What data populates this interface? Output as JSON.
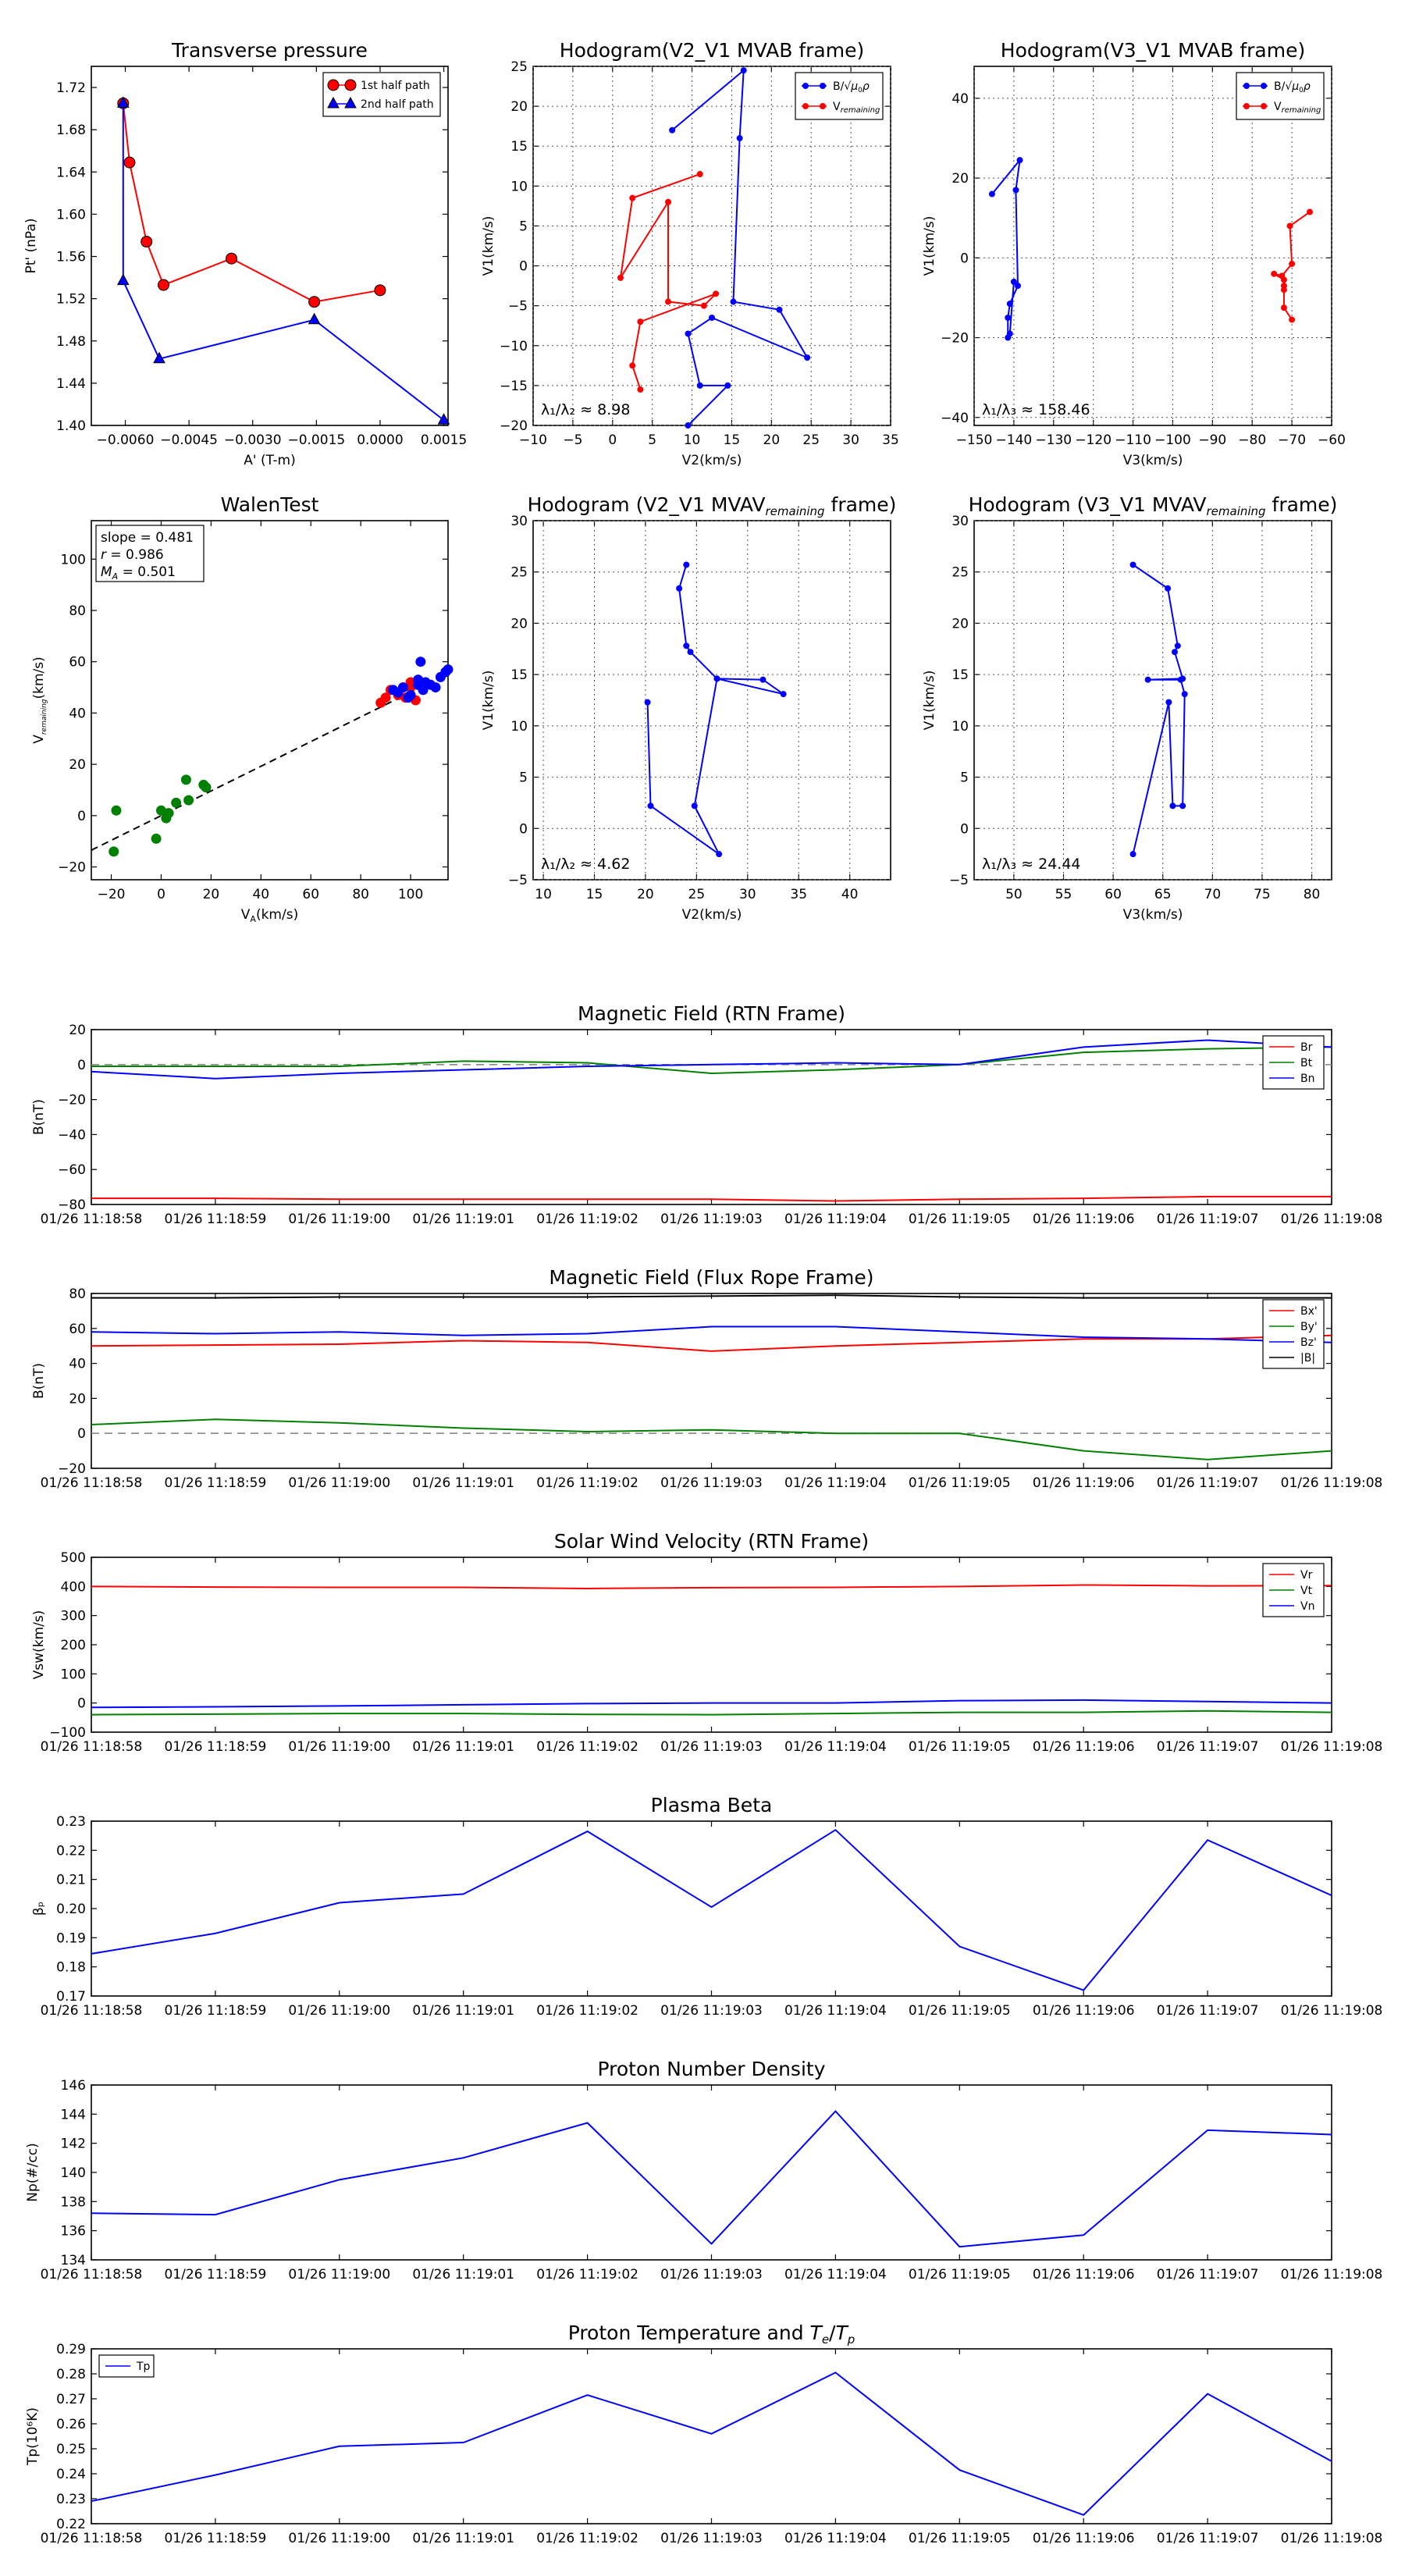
{
  "figure": {
    "time_ticks": [
      "01/26 11:18:58",
      "01/26 11:18:59",
      "01/26 11:19:00",
      "01/26 11:19:01",
      "01/26 11:19:02",
      "01/26 11:19:03",
      "01/26 11:19:04",
      "01/26 11:19:05",
      "01/26 11:19:06",
      "01/26 11:19:07",
      "01/26 11:19:08"
    ]
  },
  "colors": {
    "red": "#ff0000",
    "green": "#008000",
    "blue": "#0000ff",
    "black": "#000000",
    "gray": "#888888",
    "red_marker": "#dd1111",
    "blue_marker": "#1a1aff"
  },
  "chart_data": [
    {
      "id": "pt",
      "type": "line",
      "title": "Transverse pressure",
      "xlabel": "A' (T-m)",
      "ylabel": "Pt' (nPa)",
      "xlim": [
        -0.0068,
        0.0016
      ],
      "ylim": [
        1.4,
        1.74
      ],
      "xticks": [
        -0.006,
        -0.0045,
        -0.003,
        -0.0015,
        0.0,
        0.0015
      ],
      "xtick_labels": [
        "−0.0060",
        "−0.0045",
        "−0.0030",
        "−0.0015",
        "0.0000",
        "0.0015"
      ],
      "yticks": [
        1.4,
        1.44,
        1.48,
        1.52,
        1.56,
        1.6,
        1.64,
        1.68,
        1.72
      ],
      "ytick_labels": [
        "1.40",
        "1.44",
        "1.48",
        "1.52",
        "1.56",
        "1.60",
        "1.64",
        "1.68",
        "1.72"
      ],
      "legend_loc": "top-right",
      "series": [
        {
          "name": "1st half path",
          "color": "red",
          "marker": "circle",
          "x": [
            -0.00605,
            -0.0059,
            -0.0055,
            -0.0051,
            -0.0035,
            -0.00155,
            0.0
          ],
          "y": [
            1.705,
            1.649,
            1.574,
            1.533,
            1.558,
            1.517,
            1.528
          ]
        },
        {
          "name": "2nd half path",
          "color": "blue",
          "marker": "triangle",
          "x": [
            -0.00605,
            -0.00605,
            -0.0052,
            -0.00155,
            0.0015
          ],
          "y": [
            1.705,
            1.537,
            1.463,
            1.5,
            1.405
          ]
        }
      ]
    },
    {
      "id": "hodo1",
      "type": "line",
      "title": "Hodogram(V2_V1 MVAB frame)",
      "xlabel": "V2(km/s)",
      "ylabel": "V1(km/s)",
      "xlim": [
        -10,
        35
      ],
      "ylim": [
        -20,
        25
      ],
      "xticks": [
        -10,
        -5,
        0,
        5,
        10,
        15,
        20,
        25,
        30,
        35
      ],
      "yticks": [
        -20,
        -15,
        -10,
        -5,
        0,
        5,
        10,
        15,
        20,
        25
      ],
      "grid": true,
      "legend_loc": "top-right",
      "annotation": "λ₁/λ₂ ≈ 8.98",
      "series": [
        {
          "name": "B/√μ₀ρ",
          "color": "blue",
          "marker": "dot",
          "x": [
            7.5,
            16.5,
            16.0,
            15.2,
            21.0,
            24.5,
            12.5,
            9.5,
            11.0,
            14.5,
            9.5
          ],
          "y": [
            17.0,
            24.5,
            16.0,
            -4.5,
            -5.5,
            -11.5,
            -6.5,
            -8.5,
            -15.0,
            -15.0,
            -20.0
          ]
        },
        {
          "name": "V_remaining",
          "color": "red",
          "marker": "dot",
          "x": [
            11.0,
            2.5,
            1.0,
            7.0,
            7.0,
            11.5,
            13.0,
            3.5,
            2.5,
            3.5
          ],
          "y": [
            11.5,
            8.5,
            -1.5,
            8.0,
            -4.5,
            -5.0,
            -3.5,
            -7.0,
            -12.5,
            -15.5
          ]
        }
      ]
    },
    {
      "id": "hodo2",
      "type": "line",
      "title": "Hodogram(V3_V1 MVAB frame)",
      "xlabel": "V3(km/s)",
      "ylabel": "V1(km/s)",
      "xlim": [
        -150,
        -60
      ],
      "ylim": [
        -42,
        48
      ],
      "xticks": [
        -150,
        -140,
        -130,
        -120,
        -110,
        -100,
        -90,
        -80,
        -70,
        -60
      ],
      "yticks": [
        -40,
        -20,
        0,
        20,
        40
      ],
      "grid": true,
      "legend_loc": "top-right",
      "annotation": "λ₁/λ₃ ≈ 158.46",
      "series": [
        {
          "name": "B/√μ₀ρ",
          "color": "blue",
          "marker": "dot",
          "x": [
            -145.5,
            -138.5,
            -139.5,
            -139.0,
            -141.0,
            -141.5,
            -141.5,
            -141.0,
            -140.0
          ],
          "y": [
            16.0,
            24.5,
            17.0,
            -7.0,
            -11.5,
            -15.0,
            -20.0,
            -19.0,
            -6.0
          ]
        },
        {
          "name": "V_remaining",
          "color": "red",
          "marker": "dot",
          "x": [
            -65.5,
            -70.5,
            -70.0,
            -72.5,
            -74.5,
            -72.0,
            -72.0,
            -72.0,
            -72.0,
            -70.0
          ],
          "y": [
            11.5,
            8.0,
            -1.5,
            -4.5,
            -4.0,
            -5.5,
            -7.0,
            -8.0,
            -12.5,
            -15.5
          ]
        }
      ]
    },
    {
      "id": "walen",
      "type": "scatter",
      "title": "WalenTest",
      "xlabel": "V_A(km/s)",
      "ylabel": "V_remaining(km/s)",
      "xlim": [
        -28,
        115
      ],
      "ylim": [
        -25,
        115
      ],
      "xticks": [
        -20,
        0,
        20,
        40,
        60,
        80,
        100
      ],
      "yticks": [
        -20,
        0,
        20,
        40,
        60,
        80,
        100
      ],
      "stats": [
        "slope = 0.481",
        "r = 0.986",
        "M_A = 0.501"
      ],
      "fit": {
        "slope": 0.481,
        "intercept": 0.0
      },
      "series": [
        {
          "name": "green",
          "color": "green",
          "x": [
            -18,
            -19,
            -2,
            0,
            2,
            3,
            6,
            10,
            11,
            17,
            18
          ],
          "y": [
            2,
            -14,
            -9,
            2,
            -1,
            1,
            5,
            14,
            6,
            12,
            11
          ]
        },
        {
          "name": "red",
          "color": "red",
          "x": [
            88,
            90,
            92,
            95,
            97,
            98,
            100,
            100,
            102
          ],
          "y": [
            44,
            46,
            49,
            47,
            50,
            46,
            50,
            52,
            45
          ]
        },
        {
          "name": "blue",
          "color": "blue",
          "x": [
            93,
            95,
            97,
            99,
            100,
            103,
            103,
            104,
            105,
            106,
            108,
            110,
            112,
            114,
            115
          ],
          "y": [
            49,
            48,
            50,
            46,
            47,
            51,
            53,
            60,
            49,
            52,
            51,
            50,
            54,
            56,
            57
          ]
        }
      ]
    },
    {
      "id": "hodo3",
      "type": "line",
      "title": "Hodogram (V2_V1 MVAV_remaining frame)",
      "xlabel": "V2(km/s)",
      "ylabel": "V1(km/s)",
      "xlim": [
        9,
        44
      ],
      "ylim": [
        -5,
        30
      ],
      "xticks": [
        10,
        15,
        20,
        25,
        30,
        35,
        40
      ],
      "yticks": [
        -5,
        0,
        5,
        10,
        15,
        20,
        25,
        30
      ],
      "grid": true,
      "annotation": "λ₁/λ₂ ≈ 4.62",
      "series": [
        {
          "name": "B",
          "color": "blue",
          "marker": "dot",
          "x": [
            24.0,
            23.3,
            24.0,
            24.4,
            27.0,
            31.5,
            33.5,
            27.0,
            24.8,
            27.2,
            20.5,
            20.2
          ],
          "y": [
            25.7,
            23.4,
            17.8,
            17.2,
            14.6,
            14.5,
            13.1,
            14.6,
            2.2,
            -2.5,
            2.2,
            12.3
          ]
        }
      ]
    },
    {
      "id": "hodo4",
      "type": "line",
      "title": "Hodogram (V3_V1 MVAV_remaining frame)",
      "xlabel": "V3(km/s)",
      "ylabel": "V1(km/s)",
      "xlim": [
        46,
        82
      ],
      "ylim": [
        -5,
        30
      ],
      "xticks": [
        50,
        55,
        60,
        65,
        70,
        75,
        80
      ],
      "yticks": [
        -5,
        0,
        5,
        10,
        15,
        20,
        25,
        30
      ],
      "grid": true,
      "annotation": "λ₁/λ₃ ≈ 24.44",
      "series": [
        {
          "name": "B",
          "color": "blue",
          "marker": "dot",
          "x": [
            62.0,
            65.5,
            66.5,
            66.2,
            67.0,
            63.5,
            66.8,
            67.2,
            67.0,
            66.0,
            65.6,
            62.0
          ],
          "y": [
            25.7,
            23.4,
            17.8,
            17.2,
            14.6,
            14.5,
            14.5,
            13.1,
            2.2,
            2.2,
            12.3,
            -2.5
          ]
        }
      ]
    },
    {
      "id": "brtn",
      "type": "line",
      "title": "Magnetic Field (RTN Frame)",
      "ylabel": "B(nT)",
      "ylim": [
        -80,
        20
      ],
      "yticks": [
        -80,
        -60,
        -40,
        -20,
        0,
        20
      ],
      "zero_line": true,
      "legend_loc": "top-right",
      "series": [
        {
          "name": "Br",
          "color": "red",
          "values": [
            -76.5,
            -76.5,
            -77,
            -77,
            -77,
            -77,
            -78,
            -77,
            -76.5,
            -75.5,
            -75.5
          ]
        },
        {
          "name": "Bt",
          "color": "green",
          "values": [
            -1,
            -1,
            -1,
            2,
            1,
            -5,
            -3,
            0,
            7,
            9,
            10
          ]
        },
        {
          "name": "Bn",
          "color": "blue",
          "values": [
            -4,
            -8,
            -5,
            -3,
            -1,
            0,
            1,
            0,
            10,
            14,
            10
          ]
        }
      ]
    },
    {
      "id": "bflux",
      "type": "line",
      "title": "Magnetic Field (Flux Rope Frame)",
      "ylabel": "B(nT)",
      "ylim": [
        -20,
        80
      ],
      "yticks": [
        -20,
        0,
        20,
        40,
        60,
        80
      ],
      "zero_line": true,
      "legend_loc": "top-right",
      "series": [
        {
          "name": "Bx'",
          "color": "red",
          "values": [
            50,
            50.5,
            51,
            53,
            52,
            47,
            50,
            52,
            54,
            54,
            56
          ]
        },
        {
          "name": "By'",
          "color": "green",
          "values": [
            5,
            8,
            6,
            3,
            1,
            2,
            0,
            0,
            -10,
            -15,
            -10
          ]
        },
        {
          "name": "Bz'",
          "color": "blue",
          "values": [
            58,
            57,
            58,
            56,
            57,
            61,
            61,
            58,
            55,
            54,
            52
          ]
        },
        {
          "name": "|B|",
          "color": "black",
          "values": [
            77.5,
            77.5,
            78,
            78,
            78,
            78.5,
            79,
            78,
            77.5,
            77.5,
            77.5
          ]
        }
      ]
    },
    {
      "id": "vsw",
      "type": "line",
      "title": "Solar Wind Velocity (RTN Frame)",
      "ylabel": "Vsw(km/s)",
      "ylim": [
        -100,
        500
      ],
      "yticks": [
        -100,
        0,
        100,
        200,
        300,
        400,
        500
      ],
      "legend_loc": "top-right",
      "series": [
        {
          "name": "Vr",
          "color": "red",
          "values": [
            400,
            398,
            397,
            397,
            393,
            396,
            397,
            400,
            405,
            402,
            403
          ]
        },
        {
          "name": "Vt",
          "color": "green",
          "values": [
            -40,
            -38,
            -36,
            -36,
            -39,
            -40,
            -36,
            -32,
            -32,
            -27,
            -32
          ]
        },
        {
          "name": "Vn",
          "color": "blue",
          "values": [
            -15,
            -13,
            -10,
            -6,
            -2,
            0,
            0,
            8,
            10,
            5,
            0
          ]
        }
      ]
    },
    {
      "id": "beta",
      "type": "line",
      "title": "Plasma Beta",
      "ylabel": "βₚ",
      "ylim": [
        0.17,
        0.23
      ],
      "yticks": [
        0.17,
        0.18,
        0.19,
        0.2,
        0.21,
        0.22,
        0.23
      ],
      "ytick_labels": [
        "0.17",
        "0.18",
        "0.19",
        "0.20",
        "0.21",
        "0.22",
        "0.23"
      ],
      "series": [
        {
          "name": "beta",
          "color": "blue",
          "values": [
            0.1845,
            0.1915,
            0.202,
            0.205,
            0.2265,
            0.2005,
            0.227,
            0.187,
            0.172,
            0.2235,
            0.2045
          ]
        }
      ]
    },
    {
      "id": "np",
      "type": "line",
      "title": "Proton Number Density",
      "ylabel": "Np(#/cc)",
      "ylim": [
        134,
        146
      ],
      "yticks": [
        134,
        136,
        138,
        140,
        142,
        144,
        146
      ],
      "series": [
        {
          "name": "Np",
          "color": "blue",
          "values": [
            137.2,
            137.1,
            139.5,
            141.0,
            143.4,
            135.1,
            144.2,
            134.9,
            135.7,
            142.9,
            142.6
          ]
        }
      ]
    },
    {
      "id": "tp",
      "type": "line",
      "title": "Proton Temperature and T_e/T_p",
      "ylabel": "Tp(10⁶K)",
      "ylim": [
        0.22,
        0.29
      ],
      "yticks": [
        0.22,
        0.23,
        0.24,
        0.25,
        0.26,
        0.27,
        0.28,
        0.29
      ],
      "ytick_labels": [
        "0.22",
        "0.23",
        "0.24",
        "0.25",
        "0.26",
        "0.27",
        "0.28",
        "0.29"
      ],
      "legend_loc": "top-left",
      "series": [
        {
          "name": "Tp",
          "color": "blue",
          "values": [
            0.229,
            0.2395,
            0.251,
            0.2525,
            0.2715,
            0.256,
            0.2805,
            0.2415,
            0.2235,
            0.272,
            0.245
          ]
        }
      ]
    }
  ]
}
